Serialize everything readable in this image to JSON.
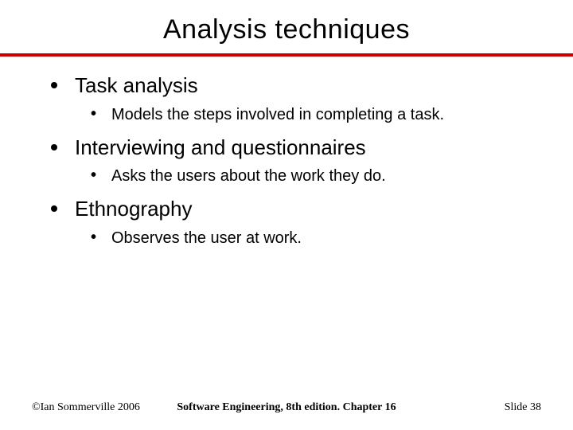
{
  "slide": {
    "title": "Analysis techniques",
    "rule_color": "#cc0000",
    "topics": [
      {
        "heading": "Task analysis",
        "subs": [
          "Models the steps involved in completing a task."
        ]
      },
      {
        "heading": "Interviewing and questionnaires",
        "subs": [
          "Asks the users about the work they do."
        ]
      },
      {
        "heading": "Ethnography",
        "subs": [
          "Observes the user at work."
        ]
      }
    ],
    "footer": {
      "left": "©Ian Sommerville 2006",
      "center": "Software Engineering, 8th edition. Chapter 16",
      "right": "Slide 38"
    }
  }
}
